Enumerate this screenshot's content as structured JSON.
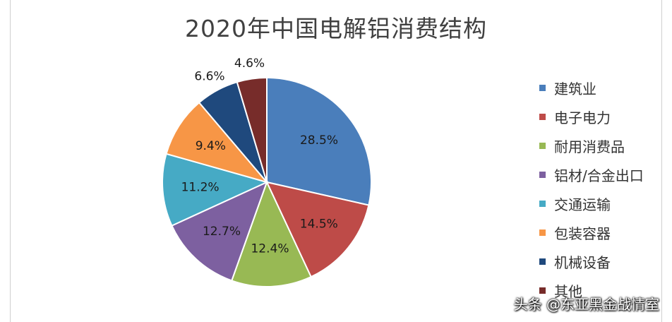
{
  "chart_data": {
    "type": "pie",
    "title": "2020年中国电解铝消费结构",
    "categories": [
      "建筑业",
      "电子电力",
      "耐用消费品",
      "铝材/合金出口",
      "交通运输",
      "包装容器",
      "机械设备",
      "其他"
    ],
    "values": [
      28.5,
      14.5,
      12.4,
      12.7,
      11.2,
      9.4,
      6.6,
      4.6
    ],
    "labels": [
      "28.5%",
      "14.5%",
      "12.4%",
      "12.7%",
      "11.2%",
      "9.4%",
      "6.6%",
      "4.6%"
    ],
    "colors": [
      "#4a7ebb",
      "#be4b48",
      "#98b954",
      "#7d60a0",
      "#46aac5",
      "#f79646",
      "#1f497d",
      "#772c2a"
    ],
    "legend_position": "right"
  },
  "watermark": "头条 @东亚黑金战情室"
}
